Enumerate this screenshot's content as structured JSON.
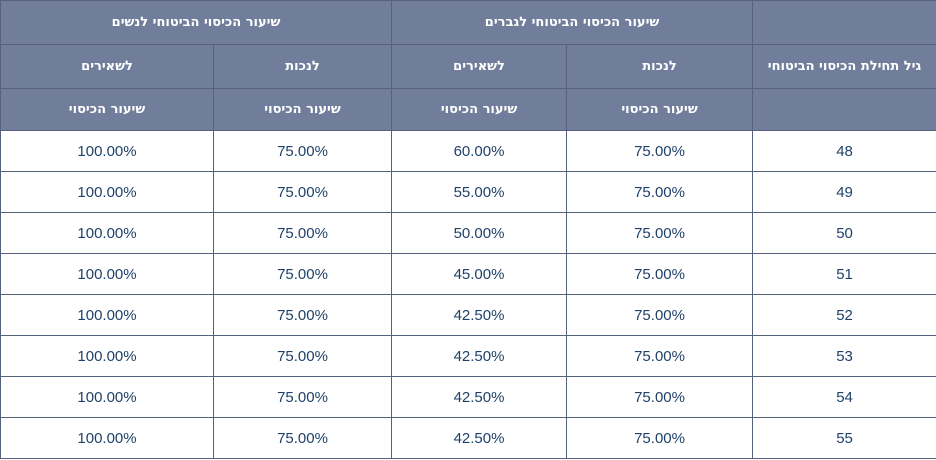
{
  "header": {
    "group_men": "שיעור הכיסוי הביטוחי לגברים",
    "group_women": "שיעור הכיסוי הביטוחי לנשים",
    "age_col": "גיל תחילת הכיסוי הביטוחי",
    "men_disability": "לנכות",
    "men_survivors": "לשאירים",
    "women_disability": "לנכות",
    "women_survivors": "לשאירים",
    "coverage_rate": "שיעור הכיסוי"
  },
  "rows": [
    {
      "age": "48",
      "men_disability": "75.00%",
      "men_survivors": "60.00%",
      "women_disability": "75.00%",
      "women_survivors": "100.00%"
    },
    {
      "age": "49",
      "men_disability": "75.00%",
      "men_survivors": "55.00%",
      "women_disability": "75.00%",
      "women_survivors": "100.00%"
    },
    {
      "age": "50",
      "men_disability": "75.00%",
      "men_survivors": "50.00%",
      "women_disability": "75.00%",
      "women_survivors": "100.00%"
    },
    {
      "age": "51",
      "men_disability": "75.00%",
      "men_survivors": "45.00%",
      "women_disability": "75.00%",
      "women_survivors": "100.00%"
    },
    {
      "age": "52",
      "men_disability": "75.00%",
      "men_survivors": "42.50%",
      "women_disability": "75.00%",
      "women_survivors": "100.00%"
    },
    {
      "age": "53",
      "men_disability": "75.00%",
      "men_survivors": "42.50%",
      "women_disability": "75.00%",
      "women_survivors": "100.00%"
    },
    {
      "age": "54",
      "men_disability": "75.00%",
      "men_survivors": "42.50%",
      "women_disability": "75.00%",
      "women_survivors": "100.00%"
    },
    {
      "age": "55",
      "men_disability": "75.00%",
      "men_survivors": "42.50%",
      "women_disability": "75.00%",
      "women_survivors": "100.00%"
    }
  ],
  "colors": {
    "header_bg": "#707e9c",
    "border": "#56617e",
    "body_text": "#1f4168"
  }
}
